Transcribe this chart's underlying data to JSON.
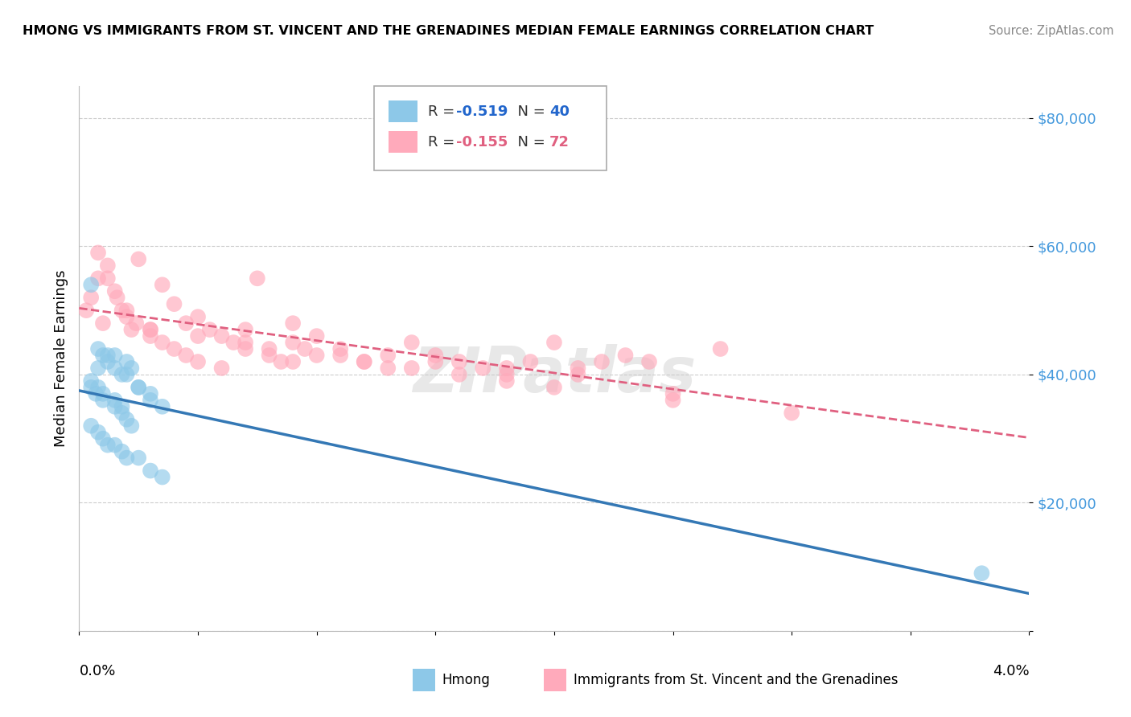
{
  "title": "HMONG VS IMMIGRANTS FROM ST. VINCENT AND THE GRENADINES MEDIAN FEMALE EARNINGS CORRELATION CHART",
  "source": "Source: ZipAtlas.com",
  "ylabel": "Median Female Earnings",
  "xmin": 0.0,
  "xmax": 0.04,
  "ymin": 0,
  "ymax": 85000,
  "yticks": [
    0,
    20000,
    40000,
    60000,
    80000
  ],
  "ytick_labels": [
    "",
    "$20,000",
    "$40,000",
    "$60,000",
    "$80,000"
  ],
  "legend1_r": "-0.519",
  "legend1_n": "40",
  "legend2_r": "-0.155",
  "legend2_n": "72",
  "blue_color": "#8dc8e8",
  "pink_color": "#ffaabb",
  "blue_line_color": "#3478b5",
  "pink_line_color": "#e06080",
  "hmong_scatter_x": [
    0.0005,
    0.001,
    0.0008,
    0.0015,
    0.0012,
    0.0018,
    0.002,
    0.0022,
    0.0025,
    0.003,
    0.0005,
    0.0007,
    0.001,
    0.0015,
    0.0018,
    0.002,
    0.0022,
    0.0005,
    0.0008,
    0.001,
    0.0012,
    0.0015,
    0.0018,
    0.002,
    0.0025,
    0.003,
    0.0035,
    0.0008,
    0.0012,
    0.0015,
    0.002,
    0.0025,
    0.003,
    0.0035,
    0.038,
    0.0005,
    0.0008,
    0.001,
    0.0015,
    0.0018
  ],
  "hmong_scatter_y": [
    54000,
    43000,
    41000,
    43000,
    42000,
    40000,
    42000,
    41000,
    38000,
    36000,
    38000,
    37000,
    36000,
    35000,
    34000,
    33000,
    32000,
    32000,
    31000,
    30000,
    29000,
    29000,
    28000,
    27000,
    27000,
    25000,
    24000,
    44000,
    43000,
    41000,
    40000,
    38000,
    37000,
    35000,
    9000,
    39000,
    38000,
    37000,
    36000,
    35000
  ],
  "svg_scatter_x": [
    0.0003,
    0.0005,
    0.0008,
    0.001,
    0.0012,
    0.0015,
    0.0018,
    0.002,
    0.0022,
    0.0025,
    0.003,
    0.0035,
    0.004,
    0.0045,
    0.005,
    0.0055,
    0.006,
    0.0065,
    0.007,
    0.0075,
    0.008,
    0.0085,
    0.009,
    0.0095,
    0.01,
    0.011,
    0.012,
    0.013,
    0.014,
    0.015,
    0.016,
    0.017,
    0.018,
    0.019,
    0.02,
    0.021,
    0.022,
    0.023,
    0.025,
    0.027,
    0.003,
    0.005,
    0.007,
    0.009,
    0.011,
    0.013,
    0.015,
    0.018,
    0.021,
    0.024,
    0.0008,
    0.0012,
    0.0016,
    0.002,
    0.0024,
    0.003,
    0.0035,
    0.004,
    0.0045,
    0.005,
    0.006,
    0.007,
    0.008,
    0.009,
    0.01,
    0.012,
    0.014,
    0.016,
    0.018,
    0.02,
    0.025,
    0.03
  ],
  "svg_scatter_y": [
    50000,
    52000,
    55000,
    48000,
    57000,
    53000,
    50000,
    49000,
    47000,
    58000,
    46000,
    54000,
    51000,
    48000,
    49000,
    47000,
    46000,
    45000,
    44000,
    55000,
    43000,
    42000,
    48000,
    44000,
    46000,
    43000,
    42000,
    41000,
    45000,
    43000,
    42000,
    41000,
    40000,
    42000,
    45000,
    41000,
    42000,
    43000,
    36000,
    44000,
    47000,
    46000,
    47000,
    45000,
    44000,
    43000,
    42000,
    41000,
    40000,
    42000,
    59000,
    55000,
    52000,
    50000,
    48000,
    47000,
    45000,
    44000,
    43000,
    42000,
    41000,
    45000,
    44000,
    42000,
    43000,
    42000,
    41000,
    40000,
    39000,
    38000,
    37000,
    34000
  ]
}
